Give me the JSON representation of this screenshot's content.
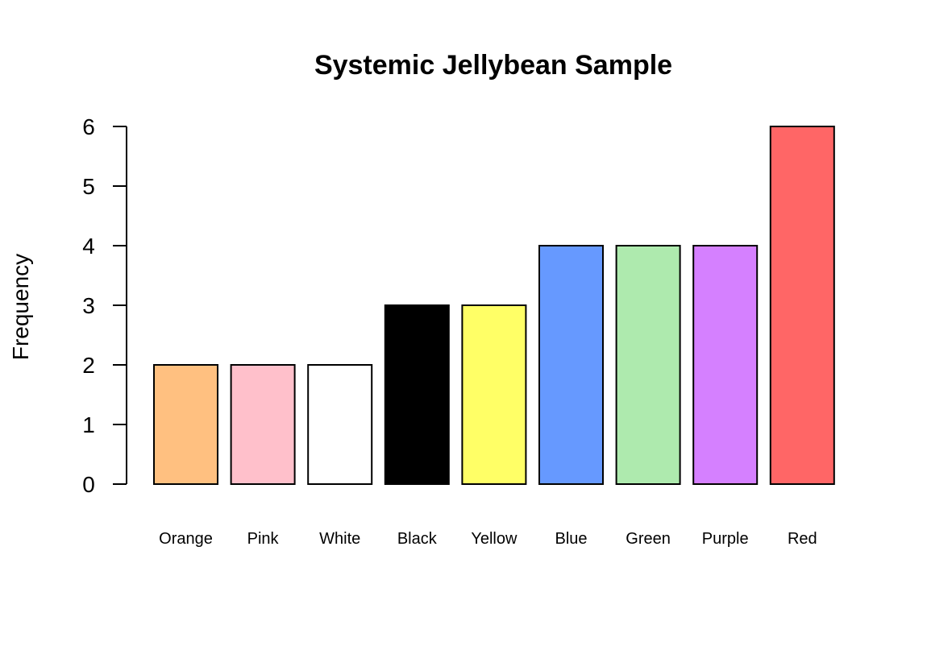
{
  "chart_data": {
    "type": "bar",
    "title": "Systemic Jellybean Sample",
    "xlabel": "",
    "ylabel": "Frequency",
    "categories": [
      "Orange",
      "Pink",
      "White",
      "Black",
      "Yellow",
      "Blue",
      "Green",
      "Purple",
      "Red"
    ],
    "values": [
      2,
      2,
      2,
      3,
      3,
      4,
      4,
      4,
      6
    ],
    "colors": [
      "#FFC080",
      "#FFC0CB",
      "#FFFFFF",
      "#000000",
      "#FFFF66",
      "#6699FF",
      "#AEEAAE",
      "#D580FF",
      "#FF6666"
    ],
    "bar_outline_color": "#000000",
    "ylim": [
      0,
      6
    ],
    "yticks": [
      0,
      1,
      2,
      3,
      4,
      5,
      6
    ],
    "grid": false,
    "legend": "none"
  }
}
